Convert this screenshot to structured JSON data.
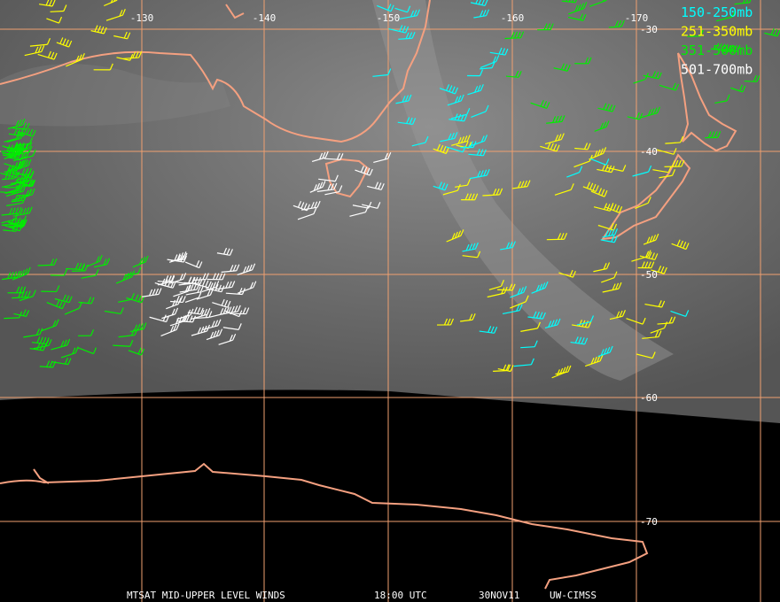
{
  "map": {
    "lon_labels": [
      "-130",
      "-140",
      "-150",
      "-160",
      "-170"
    ],
    "lat_labels": [
      "-30",
      "-40",
      "-50",
      "-60",
      "-70"
    ],
    "legend": [
      {
        "label": "150-250mb",
        "color": "#00ffff"
      },
      {
        "label": "251-350mb",
        "color": "#ffff00"
      },
      {
        "label": "351-500mb",
        "color": "#00ee00"
      },
      {
        "label": "501-700mb",
        "color": "#ffffff"
      }
    ],
    "footer": [
      "MTSAT MID-UPPER LEVEL WINDS",
      "18:00 UTC",
      "30NOV11",
      "UW-CIMSS"
    ]
  }
}
